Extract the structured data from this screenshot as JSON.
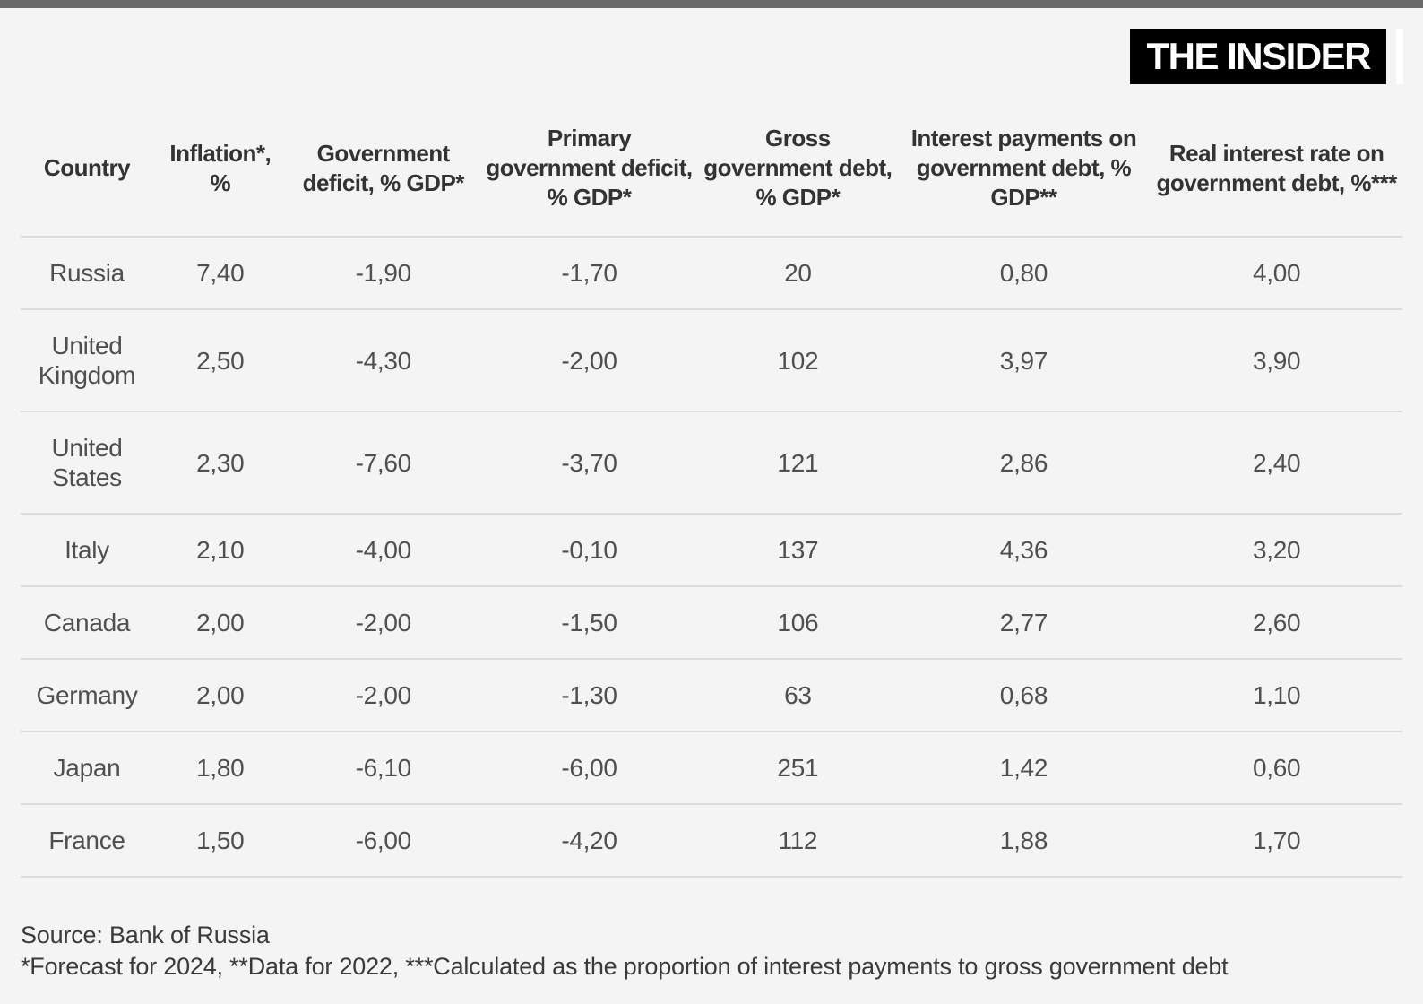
{
  "brand": {
    "logo_text": "THE INSIDER"
  },
  "theme": {
    "background": "#f4f4f4",
    "top_bar": "#6a6a6a",
    "logo_bg": "#000000",
    "logo_fg": "#ffffff",
    "header_text": "#333333",
    "body_text": "#4f4f4f",
    "divider": "#dcdcdc"
  },
  "chart_data": {
    "type": "table",
    "columns": [
      "Country",
      "Inflation*, %",
      "Government deficit, % GDP*",
      "Primary government deficit, % GDP*",
      "Gross government debt, % GDP*",
      "Interest payments on government debt, % GDP**",
      "Real interest rate on government debt, %***"
    ],
    "value_columns": [
      "inflation_pct",
      "government_deficit_pct_gdp",
      "primary_government_deficit_pct_gdp",
      "gross_government_debt_pct_gdp",
      "interest_payments_on_debt_pct_gdp",
      "real_interest_rate_on_debt_pct"
    ],
    "value_formats": [
      "dec2",
      "dec2",
      "dec2",
      "int",
      "dec2",
      "dec2"
    ],
    "decimal_separator": ",",
    "rows": [
      {
        "country": "Russia",
        "values": [
          7.4,
          -1.9,
          -1.7,
          20,
          0.8,
          4.0
        ]
      },
      {
        "country": "United Kingdom",
        "values": [
          2.5,
          -4.3,
          -2.0,
          102,
          3.97,
          3.9
        ]
      },
      {
        "country": "United States",
        "values": [
          2.3,
          -7.6,
          -3.7,
          121,
          2.86,
          2.4
        ]
      },
      {
        "country": "Italy",
        "values": [
          2.1,
          -4.0,
          -0.1,
          137,
          4.36,
          3.2
        ]
      },
      {
        "country": "Canada",
        "values": [
          2.0,
          -2.0,
          -1.5,
          106,
          2.77,
          2.6
        ]
      },
      {
        "country": "Germany",
        "values": [
          2.0,
          -2.0,
          -1.3,
          63,
          0.68,
          1.1
        ]
      },
      {
        "country": "Japan",
        "values": [
          1.8,
          -6.1,
          -6.0,
          251,
          1.42,
          0.6
        ]
      },
      {
        "country": "France",
        "values": [
          1.5,
          -6.0,
          -4.2,
          112,
          1.88,
          1.7
        ]
      }
    ],
    "source": "Source: Bank of Russia",
    "footnotes": "*Forecast for 2024, **Data for 2022, ***Calculated as the proportion of interest payments to gross government debt"
  }
}
